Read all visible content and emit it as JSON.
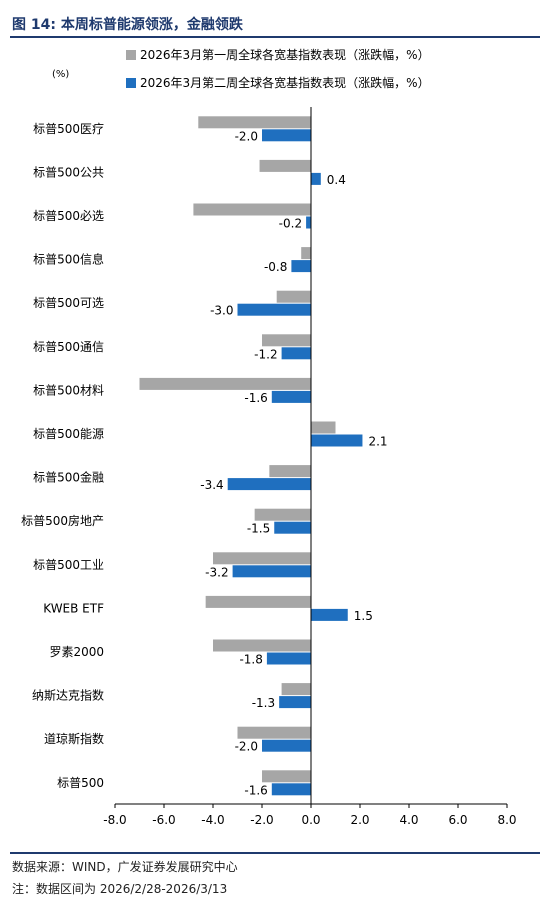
{
  "header": {
    "title": "图 14:  本周标普能源领涨，金融领跌"
  },
  "colors": {
    "series1": "#a6a6a6",
    "series2": "#1f6fbf",
    "title": "#1f3a6e",
    "axis": "#000000",
    "text": "#000000"
  },
  "chart_data": {
    "type": "bar",
    "orientation": "horizontal",
    "unit_label": "(%)",
    "categories": [
      "标普500医疗",
      "标普500公共",
      "标普500必选",
      "标普500信息",
      "标普500可选",
      "标普500通信",
      "标普500材料",
      "标普500能源",
      "标普500金融",
      "标普500房地产",
      "标普500工业",
      "KWEB ETF",
      "罗素2000",
      "纳斯达克指数",
      "道琼斯指数",
      "标普500"
    ],
    "series": [
      {
        "name": "2026年3月第一周全球各宽基指数表现（涨跌幅，%）",
        "color": "#a6a6a6",
        "values": [
          -4.6,
          -2.1,
          -4.8,
          -0.4,
          -1.4,
          -2.0,
          -7.0,
          1.0,
          -1.7,
          -2.3,
          -4.0,
          -4.3,
          -4.0,
          -1.2,
          -3.0,
          -2.0
        ],
        "value_labels": [
          "",
          "",
          "",
          "",
          "",
          "",
          "",
          "",
          "",
          "",
          "",
          "",
          "",
          "",
          "",
          ""
        ]
      },
      {
        "name": "2026年3月第二周全球各宽基指数表现（涨跌幅，%）",
        "color": "#1f6fbf",
        "values": [
          -2.0,
          0.4,
          -0.2,
          -0.8,
          -3.0,
          -1.2,
          -1.6,
          2.1,
          -3.4,
          -1.5,
          -3.2,
          1.5,
          -1.8,
          -1.3,
          -2.0,
          -1.6
        ],
        "value_labels": [
          "-2.0",
          "0.4",
          "-0.2",
          "-0.8",
          "-3.0",
          "-1.2",
          "-1.6",
          "2.1",
          "-3.4",
          "-1.5",
          "-3.2",
          "1.5",
          "-1.8",
          "-1.3",
          "-2.0",
          "-1.6"
        ]
      }
    ],
    "xlim": [
      -8.0,
      8.0
    ],
    "xticks": [
      "-8.0",
      "-6.0",
      "-4.0",
      "-2.0",
      "0.0",
      "2.0",
      "4.0",
      "6.0",
      "8.0"
    ],
    "xtick_values": [
      -8,
      -6,
      -4,
      -2,
      0,
      2,
      4,
      6,
      8
    ],
    "grid": false,
    "legend_position": "top"
  },
  "footer": {
    "source": "数据来源：WIND，广发证券发展研究中心",
    "note": "注：数据区间为 2026/2/28-2026/3/13"
  }
}
